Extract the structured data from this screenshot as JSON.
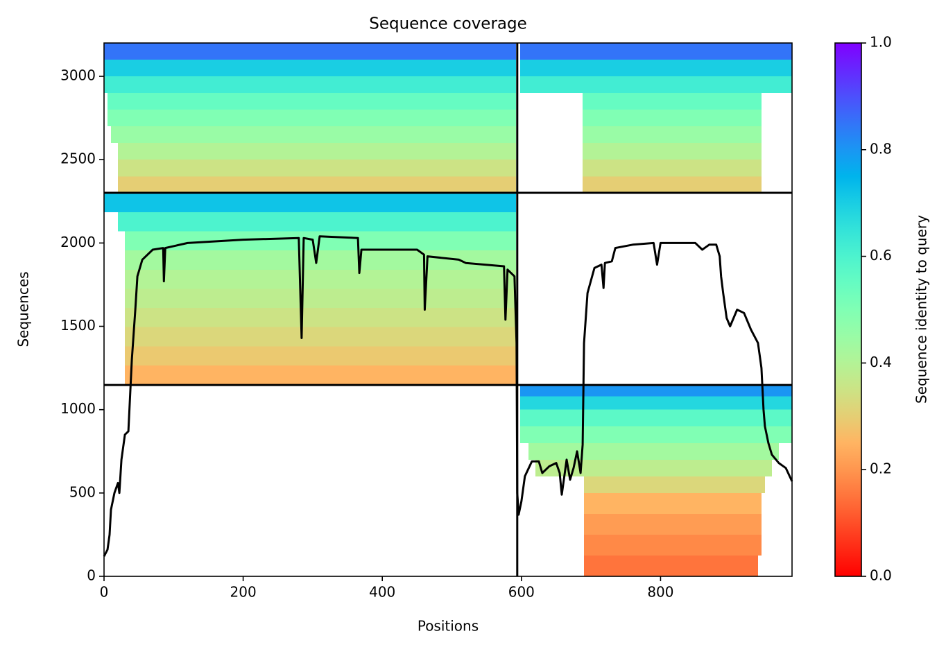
{
  "chart_data": {
    "type": "coverage",
    "title": "Sequence coverage",
    "xlabel": "Positions",
    "ylabel": "Sequences",
    "xlim": [
      0,
      989
    ],
    "xticks": [
      0,
      200,
      400,
      600,
      800
    ],
    "ylim": [
      0,
      3200
    ],
    "yticks": [
      0,
      500,
      1000,
      1500,
      2000,
      2500,
      3000
    ],
    "cmap": "rainbow_r",
    "colorbar": {
      "label": "Sequence identity to query",
      "lim": [
        0,
        1
      ],
      "ticks": [
        {
          "value": 0,
          "label": "0.0"
        },
        0.2,
        0.4,
        0.6,
        0.8,
        {
          "value": 1,
          "label": "1.0"
        }
      ]
    },
    "segments": [
      {
        "positions": [
          20,
          592
        ],
        "sequences": [
          2300,
          2400
        ],
        "identity": 0.3
      },
      {
        "positions": [
          20,
          592
        ],
        "sequences": [
          2400,
          2500
        ],
        "identity": 0.35
      },
      {
        "positions": [
          20,
          592
        ],
        "sequences": [
          2500,
          2600
        ],
        "identity": 0.4
      },
      {
        "positions": [
          10,
          592
        ],
        "sequences": [
          2600,
          2700
        ],
        "identity": 0.45
      },
      {
        "positions": [
          5,
          592
        ],
        "sequences": [
          2700,
          2800
        ],
        "identity": 0.5
      },
      {
        "positions": [
          5,
          592
        ],
        "sequences": [
          2800,
          2900
        ],
        "identity": 0.55
      },
      {
        "positions": [
          0,
          592
        ],
        "sequences": [
          2900,
          3000
        ],
        "identity": 0.62
      },
      {
        "positions": [
          0,
          592
        ],
        "sequences": [
          3000,
          3100
        ],
        "identity": 0.7
      },
      {
        "positions": [
          0,
          592
        ],
        "sequences": [
          3100,
          3200
        ],
        "identity": 0.85
      },
      {
        "positions": [
          688,
          945
        ],
        "sequences": [
          2300,
          2400
        ],
        "identity": 0.3
      },
      {
        "positions": [
          688,
          945
        ],
        "sequences": [
          2400,
          2500
        ],
        "identity": 0.35
      },
      {
        "positions": [
          688,
          945
        ],
        "sequences": [
          2500,
          2600
        ],
        "identity": 0.4
      },
      {
        "positions": [
          688,
          945
        ],
        "sequences": [
          2600,
          2700
        ],
        "identity": 0.45
      },
      {
        "positions": [
          688,
          945
        ],
        "sequences": [
          2700,
          2800
        ],
        "identity": 0.5
      },
      {
        "positions": [
          688,
          945
        ],
        "sequences": [
          2800,
          2900
        ],
        "identity": 0.55
      },
      {
        "positions": [
          598,
          989
        ],
        "sequences": [
          2900,
          3000
        ],
        "identity": 0.62
      },
      {
        "positions": [
          598,
          989
        ],
        "sequences": [
          3000,
          3100
        ],
        "identity": 0.7
      },
      {
        "positions": [
          598,
          989
        ],
        "sequences": [
          3100,
          3200
        ],
        "identity": 0.85
      },
      {
        "positions": [
          30,
          592
        ],
        "sequences": [
          1150,
          1265
        ],
        "identity": 0.25
      },
      {
        "positions": [
          30,
          592
        ],
        "sequences": [
          1265,
          1380
        ],
        "identity": 0.29
      },
      {
        "positions": [
          30,
          592
        ],
        "sequences": [
          1380,
          1495
        ],
        "identity": 0.32
      },
      {
        "positions": [
          30,
          592
        ],
        "sequences": [
          1495,
          1610
        ],
        "identity": 0.35
      },
      {
        "positions": [
          30,
          592
        ],
        "sequences": [
          1610,
          1725
        ],
        "identity": 0.38
      },
      {
        "positions": [
          30,
          592
        ],
        "sequences": [
          1725,
          1840
        ],
        "identity": 0.4
      },
      {
        "positions": [
          30,
          592
        ],
        "sequences": [
          1840,
          1955
        ],
        "identity": 0.43
      },
      {
        "positions": [
          30,
          592
        ],
        "sequences": [
          1955,
          2070
        ],
        "identity": 0.5
      },
      {
        "positions": [
          20,
          592
        ],
        "sequences": [
          2070,
          2185
        ],
        "identity": 0.6
      },
      {
        "positions": [
          0,
          592
        ],
        "sequences": [
          2185,
          2300
        ],
        "identity": 0.72
      },
      {
        "positions": [
          690,
          940
        ],
        "sequences": [
          0,
          125
        ],
        "identity": 0.15
      },
      {
        "positions": [
          690,
          945
        ],
        "sequences": [
          125,
          250
        ],
        "identity": 0.18
      },
      {
        "positions": [
          690,
          945
        ],
        "sequences": [
          250,
          375
        ],
        "identity": 0.21
      },
      {
        "positions": [
          690,
          945
        ],
        "sequences": [
          375,
          500
        ],
        "identity": 0.25
      },
      {
        "positions": [
          690,
          950
        ],
        "sequences": [
          500,
          600
        ],
        "identity": 0.32
      },
      {
        "positions": [
          620,
          960
        ],
        "sequences": [
          600,
          700
        ],
        "identity": 0.38
      },
      {
        "positions": [
          610,
          970
        ],
        "sequences": [
          700,
          800
        ],
        "identity": 0.43
      },
      {
        "positions": [
          598,
          989
        ],
        "sequences": [
          800,
          900
        ],
        "identity": 0.5
      },
      {
        "positions": [
          598,
          989
        ],
        "sequences": [
          900,
          1000
        ],
        "identity": 0.57
      },
      {
        "positions": [
          598,
          989
        ],
        "sequences": [
          1000,
          1080
        ],
        "identity": 0.68
      },
      {
        "positions": [
          598,
          989
        ],
        "sequences": [
          1080,
          1150
        ],
        "identity": 0.8
      }
    ],
    "dividers": {
      "positions": [
        594
      ],
      "sequences": [
        1148,
        2301
      ]
    },
    "coverage": {
      "color": "#000000",
      "x": [
        0,
        5,
        8,
        10,
        15,
        20,
        22,
        25,
        30,
        35,
        40,
        45,
        48,
        55,
        70,
        85,
        86,
        88,
        120,
        200,
        280,
        284,
        287,
        300,
        305,
        310,
        365,
        367,
        370,
        450,
        460,
        461,
        465,
        510,
        520,
        575,
        577,
        580,
        590,
        593,
        594,
        596,
        600,
        605,
        615,
        625,
        630,
        640,
        650,
        655,
        658,
        665,
        670,
        675,
        680,
        685,
        688,
        690,
        695,
        705,
        715,
        718,
        720,
        730,
        735,
        760,
        790,
        795,
        800,
        850,
        860,
        870,
        880,
        885,
        887,
        890,
        895,
        900,
        910,
        920,
        930,
        940,
        945,
        948,
        950,
        955,
        960,
        970,
        980,
        989
      ],
      "values": [
        120,
        160,
        250,
        400,
        500,
        560,
        500,
        700,
        850,
        870,
        1300,
        1600,
        1800,
        1900,
        1960,
        1970,
        1770,
        1970,
        2000,
        2020,
        2030,
        1430,
        2030,
        2020,
        1880,
        2040,
        2030,
        1820,
        1960,
        1960,
        1930,
        1600,
        1920,
        1900,
        1880,
        1860,
        1540,
        1840,
        1800,
        1400,
        500,
        370,
        450,
        600,
        690,
        690,
        620,
        660,
        680,
        620,
        490,
        700,
        580,
        650,
        750,
        620,
        790,
        1400,
        1700,
        1850,
        1870,
        1730,
        1880,
        1890,
        1970,
        1990,
        2000,
        1870,
        2000,
        2000,
        1960,
        1990,
        1990,
        1920,
        1800,
        1700,
        1550,
        1500,
        1600,
        1580,
        1480,
        1400,
        1250,
        1000,
        900,
        800,
        730,
        680,
        650,
        570
      ]
    }
  }
}
